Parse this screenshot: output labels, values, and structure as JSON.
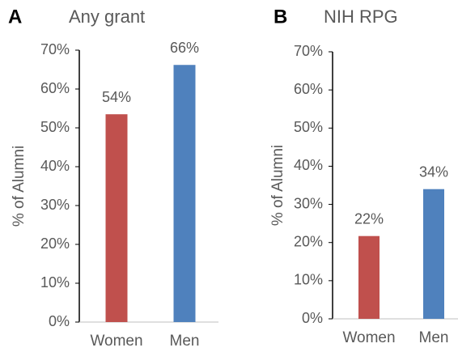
{
  "chart_data": [
    {
      "type": "bar",
      "label": "A",
      "title": "Any grant",
      "y_label": "% of Alumni",
      "categories": [
        "Women",
        "Men"
      ],
      "values": [
        53.5,
        66.2
      ],
      "value_labels": [
        "54%",
        "66%"
      ],
      "colors": [
        "#c0504d",
        "#4f81bd"
      ],
      "ylim": [
        0,
        70
      ],
      "yticks": [
        {
          "value": 0,
          "label": "0%"
        },
        {
          "value": 10,
          "label": "10%"
        },
        {
          "value": 20,
          "label": "20%"
        },
        {
          "value": 30,
          "label": "30%"
        },
        {
          "value": 40,
          "label": "40%"
        },
        {
          "value": 50,
          "label": "50%"
        },
        {
          "value": 60,
          "label": "60%"
        },
        {
          "value": 70,
          "label": "70%"
        }
      ]
    },
    {
      "type": "bar",
      "label": "B",
      "title": "NIH RPG",
      "y_label": "% of Alumni",
      "categories": [
        "Women",
        "Men"
      ],
      "values": [
        21.7,
        34
      ],
      "value_labels": [
        "22%",
        "34%"
      ],
      "colors": [
        "#c0504d",
        "#4f81bd"
      ],
      "ylim": [
        0,
        70
      ],
      "yticks": [
        {
          "value": 0,
          "label": "0%"
        },
        {
          "value": 10,
          "label": "10%"
        },
        {
          "value": 20,
          "label": "20%"
        },
        {
          "value": 30,
          "label": "30%"
        },
        {
          "value": 40,
          "label": "40%"
        },
        {
          "value": 50,
          "label": "50%"
        },
        {
          "value": 60,
          "label": "60%"
        },
        {
          "value": 70,
          "label": "70%"
        }
      ]
    }
  ]
}
